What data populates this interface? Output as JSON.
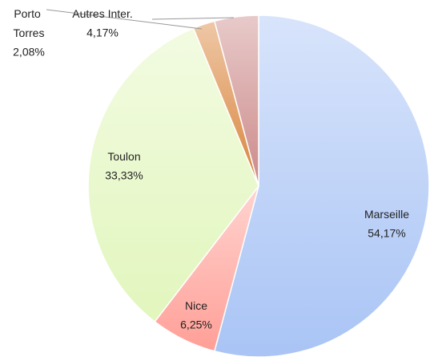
{
  "chart_data": {
    "type": "pie",
    "categories": [
      "Marseille",
      "Nice",
      "Toulon",
      "Porto Torres",
      "Autres Inter."
    ],
    "values": [
      54.17,
      6.25,
      33.33,
      2.08,
      4.17
    ],
    "value_labels": [
      "54,17%",
      "6,25%",
      "33,33%",
      "2,08%",
      "4,17%"
    ],
    "colors": [
      "#a9c4f5",
      "#ff9f97",
      "#e2f6bd",
      "#d9843b",
      "#cc8a8a"
    ]
  }
}
